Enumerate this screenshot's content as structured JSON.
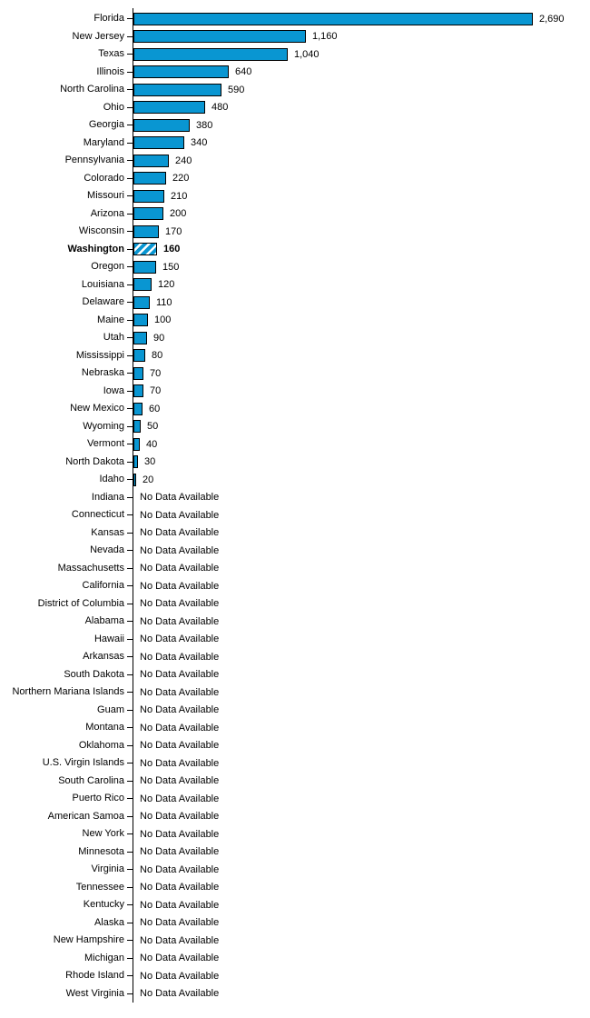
{
  "chart_data": {
    "type": "bar",
    "orientation": "horizontal",
    "title": "",
    "xlabel": "",
    "ylabel": "",
    "xlim": [
      0,
      2690
    ],
    "grid": false,
    "legend_position": "none",
    "no_data_label": "No Data Available",
    "highlight_category": "Washington",
    "colors": {
      "bar_fill": "#0996D2",
      "bar_border": "#000000",
      "axis": "#000000",
      "text": "#000000",
      "hatch_stripe": "#ffffff"
    },
    "bars": [
      {
        "state": "Florida",
        "value": 2690,
        "label": "2,690",
        "highlight": false
      },
      {
        "state": "New Jersey",
        "value": 1160,
        "label": "1,160",
        "highlight": false
      },
      {
        "state": "Texas",
        "value": 1040,
        "label": "1,040",
        "highlight": false
      },
      {
        "state": "Illinois",
        "value": 640,
        "label": "640",
        "highlight": false
      },
      {
        "state": "North Carolina",
        "value": 590,
        "label": "590",
        "highlight": false
      },
      {
        "state": "Ohio",
        "value": 480,
        "label": "480",
        "highlight": false
      },
      {
        "state": "Georgia",
        "value": 380,
        "label": "380",
        "highlight": false
      },
      {
        "state": "Maryland",
        "value": 340,
        "label": "340",
        "highlight": false
      },
      {
        "state": "Pennsylvania",
        "value": 240,
        "label": "240",
        "highlight": false
      },
      {
        "state": "Colorado",
        "value": 220,
        "label": "220",
        "highlight": false
      },
      {
        "state": "Missouri",
        "value": 210,
        "label": "210",
        "highlight": false
      },
      {
        "state": "Arizona",
        "value": 200,
        "label": "200",
        "highlight": false
      },
      {
        "state": "Wisconsin",
        "value": 170,
        "label": "170",
        "highlight": false
      },
      {
        "state": "Washington",
        "value": 160,
        "label": "160",
        "highlight": true
      },
      {
        "state": "Oregon",
        "value": 150,
        "label": "150",
        "highlight": false
      },
      {
        "state": "Louisiana",
        "value": 120,
        "label": "120",
        "highlight": false
      },
      {
        "state": "Delaware",
        "value": 110,
        "label": "110",
        "highlight": false
      },
      {
        "state": "Maine",
        "value": 100,
        "label": "100",
        "highlight": false
      },
      {
        "state": "Utah",
        "value": 90,
        "label": "90",
        "highlight": false
      },
      {
        "state": "Mississippi",
        "value": 80,
        "label": "80",
        "highlight": false
      },
      {
        "state": "Nebraska",
        "value": 70,
        "label": "70",
        "highlight": false
      },
      {
        "state": "Iowa",
        "value": 70,
        "label": "70",
        "highlight": false
      },
      {
        "state": "New Mexico",
        "value": 60,
        "label": "60",
        "highlight": false
      },
      {
        "state": "Wyoming",
        "value": 50,
        "label": "50",
        "highlight": false
      },
      {
        "state": "Vermont",
        "value": 40,
        "label": "40",
        "highlight": false
      },
      {
        "state": "North Dakota",
        "value": 30,
        "label": "30",
        "highlight": false
      },
      {
        "state": "Idaho",
        "value": 20,
        "label": "20",
        "highlight": false
      },
      {
        "state": "Indiana",
        "value": null,
        "label": "No Data Available",
        "highlight": false
      },
      {
        "state": "Connecticut",
        "value": null,
        "label": "No Data Available",
        "highlight": false
      },
      {
        "state": "Kansas",
        "value": null,
        "label": "No Data Available",
        "highlight": false
      },
      {
        "state": "Nevada",
        "value": null,
        "label": "No Data Available",
        "highlight": false
      },
      {
        "state": "Massachusetts",
        "value": null,
        "label": "No Data Available",
        "highlight": false
      },
      {
        "state": "California",
        "value": null,
        "label": "No Data Available",
        "highlight": false
      },
      {
        "state": "District of Columbia",
        "value": null,
        "label": "No Data Available",
        "highlight": false
      },
      {
        "state": "Alabama",
        "value": null,
        "label": "No Data Available",
        "highlight": false
      },
      {
        "state": "Hawaii",
        "value": null,
        "label": "No Data Available",
        "highlight": false
      },
      {
        "state": "Arkansas",
        "value": null,
        "label": "No Data Available",
        "highlight": false
      },
      {
        "state": "South Dakota",
        "value": null,
        "label": "No Data Available",
        "highlight": false
      },
      {
        "state": "Northern Mariana Islands",
        "value": null,
        "label": "No Data Available",
        "highlight": false
      },
      {
        "state": "Guam",
        "value": null,
        "label": "No Data Available",
        "highlight": false
      },
      {
        "state": "Montana",
        "value": null,
        "label": "No Data Available",
        "highlight": false
      },
      {
        "state": "Oklahoma",
        "value": null,
        "label": "No Data Available",
        "highlight": false
      },
      {
        "state": "U.S. Virgin Islands",
        "value": null,
        "label": "No Data Available",
        "highlight": false
      },
      {
        "state": "South Carolina",
        "value": null,
        "label": "No Data Available",
        "highlight": false
      },
      {
        "state": "Puerto Rico",
        "value": null,
        "label": "No Data Available",
        "highlight": false
      },
      {
        "state": "American Samoa",
        "value": null,
        "label": "No Data Available",
        "highlight": false
      },
      {
        "state": "New York",
        "value": null,
        "label": "No Data Available",
        "highlight": false
      },
      {
        "state": "Minnesota",
        "value": null,
        "label": "No Data Available",
        "highlight": false
      },
      {
        "state": "Virginia",
        "value": null,
        "label": "No Data Available",
        "highlight": false
      },
      {
        "state": "Tennessee",
        "value": null,
        "label": "No Data Available",
        "highlight": false
      },
      {
        "state": "Kentucky",
        "value": null,
        "label": "No Data Available",
        "highlight": false
      },
      {
        "state": "Alaska",
        "value": null,
        "label": "No Data Available",
        "highlight": false
      },
      {
        "state": "New Hampshire",
        "value": null,
        "label": "No Data Available",
        "highlight": false
      },
      {
        "state": "Michigan",
        "value": null,
        "label": "No Data Available",
        "highlight": false
      },
      {
        "state": "Rhode Island",
        "value": null,
        "label": "No Data Available",
        "highlight": false
      },
      {
        "state": "West Virginia",
        "value": null,
        "label": "No Data Available",
        "highlight": false
      }
    ]
  }
}
